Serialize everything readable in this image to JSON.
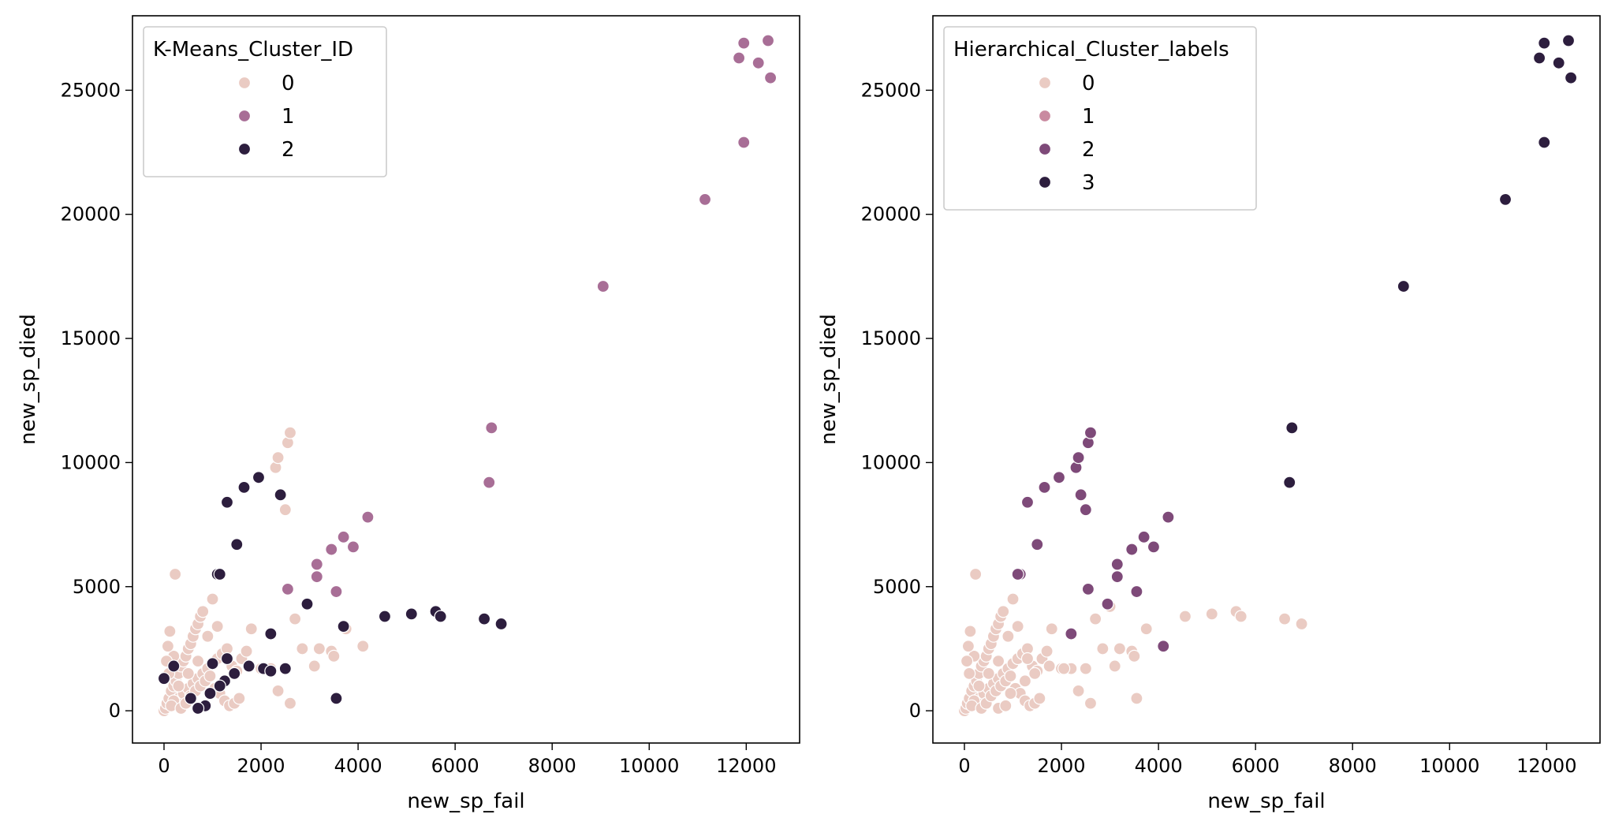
{
  "chart_data": [
    {
      "type": "scatter",
      "title": "",
      "xlabel": "new_sp_fail",
      "ylabel": "new_sp_died",
      "xlim": [
        -650,
        13100
      ],
      "ylim": [
        -1300,
        28000
      ],
      "xticks": [
        0,
        2000,
        4000,
        6000,
        8000,
        10000,
        12000
      ],
      "yticks": [
        0,
        5000,
        10000,
        15000,
        20000,
        25000
      ],
      "legend": {
        "title": "K-Means_Cluster_ID",
        "placement": "top-left",
        "labels": [
          "0",
          "1",
          "2"
        ],
        "colors": [
          "#eacbc3",
          "#a86e96",
          "#2d1e3e"
        ]
      },
      "series": [
        {
          "name": "0",
          "color": "#eacbc3",
          "points": [
            [
              0,
              0
            ],
            [
              30,
              100
            ],
            [
              60,
              300
            ],
            [
              100,
              500
            ],
            [
              150,
              800
            ],
            [
              200,
              1000
            ],
            [
              250,
              1200
            ],
            [
              300,
              1500
            ],
            [
              350,
              1800
            ],
            [
              400,
              2000
            ],
            [
              450,
              2200
            ],
            [
              500,
              2500
            ],
            [
              550,
              2700
            ],
            [
              600,
              3000
            ],
            [
              650,
              3300
            ],
            [
              700,
              3500
            ],
            [
              750,
              3800
            ],
            [
              800,
              4000
            ],
            [
              100,
              1500
            ],
            [
              200,
              2200
            ],
            [
              300,
              500
            ],
            [
              400,
              700
            ],
            [
              500,
              900
            ],
            [
              600,
              1100
            ],
            [
              700,
              1300
            ],
            [
              800,
              1500
            ],
            [
              900,
              1700
            ],
            [
              1000,
              1900
            ],
            [
              1100,
              2100
            ],
            [
              1200,
              2300
            ],
            [
              1300,
              2500
            ],
            [
              1400,
              1800
            ],
            [
              1500,
              1600
            ],
            [
              1600,
              2100
            ],
            [
              1700,
              2400
            ],
            [
              1000,
              4500
            ],
            [
              1100,
              3400
            ],
            [
              900,
              3000
            ],
            [
              700,
              2000
            ],
            [
              500,
              1500
            ],
            [
              300,
              1000
            ],
            [
              200,
              400
            ],
            [
              150,
              200
            ],
            [
              350,
              100
            ],
            [
              450,
              300
            ],
            [
              550,
              600
            ],
            [
              650,
              800
            ],
            [
              750,
              1000
            ],
            [
              850,
              1200
            ],
            [
              950,
              1400
            ],
            [
              1050,
              900
            ],
            [
              1150,
              700
            ],
            [
              1250,
              400
            ],
            [
              1350,
              200
            ],
            [
              1450,
              300
            ],
            [
              1550,
              500
            ],
            [
              1800,
              3300
            ],
            [
              2000,
              1700
            ],
            [
              2200,
              1700
            ],
            [
              2300,
              9800
            ],
            [
              2350,
              10200
            ],
            [
              2550,
              10800
            ],
            [
              2600,
              11200
            ],
            [
              2500,
              8100
            ],
            [
              2350,
              800
            ],
            [
              2600,
              300
            ],
            [
              2700,
              3700
            ],
            [
              2850,
              2500
            ],
            [
              3100,
              1800
            ],
            [
              3200,
              2500
            ],
            [
              3450,
              2400
            ],
            [
              3500,
              2200
            ],
            [
              3750,
              3300
            ],
            [
              4100,
              2600
            ],
            [
              230,
              5500
            ],
            [
              50,
              2000
            ],
            [
              80,
              2600
            ],
            [
              120,
              3200
            ]
          ]
        },
        {
          "name": "1",
          "color": "#a86e96",
          "points": [
            [
              12450,
              27000
            ],
            [
              11950,
              26900
            ],
            [
              11850,
              26300
            ],
            [
              12250,
              26100
            ],
            [
              12500,
              25500
            ],
            [
              11950,
              22900
            ],
            [
              11150,
              20600
            ],
            [
              9050,
              17100
            ],
            [
              6750,
              11400
            ],
            [
              6700,
              9200
            ],
            [
              4200,
              7800
            ],
            [
              3700,
              7000
            ],
            [
              3450,
              6500
            ],
            [
              3900,
              6600
            ],
            [
              3150,
              5900
            ],
            [
              3150,
              5400
            ],
            [
              2550,
              4900
            ],
            [
              3550,
              4800
            ]
          ]
        },
        {
          "name": "2",
          "color": "#2d1e3e",
          "points": [
            [
              1300,
              8400
            ],
            [
              1650,
              9000
            ],
            [
              1950,
              9400
            ],
            [
              2400,
              8700
            ],
            [
              1500,
              6700
            ],
            [
              1100,
              5500
            ],
            [
              1150,
              5500
            ],
            [
              2200,
              3100
            ],
            [
              2950,
              4300
            ],
            [
              3700,
              3400
            ],
            [
              4550,
              3800
            ],
            [
              5100,
              3900
            ],
            [
              5600,
              4000
            ],
            [
              5700,
              3800
            ],
            [
              6600,
              3700
            ],
            [
              6950,
              3500
            ],
            [
              3550,
              500
            ],
            [
              2050,
              1700
            ],
            [
              2200,
              1600
            ],
            [
              2500,
              1700
            ],
            [
              1750,
              1800
            ],
            [
              1450,
              1500
            ],
            [
              1300,
              2100
            ],
            [
              1250,
              1200
            ],
            [
              1150,
              1000
            ],
            [
              950,
              700
            ],
            [
              850,
              200
            ],
            [
              700,
              100
            ],
            [
              1000,
              1900
            ],
            [
              200,
              1800
            ],
            [
              0,
              1300
            ],
            [
              550,
              500
            ]
          ]
        }
      ]
    },
    {
      "type": "scatter",
      "title": "",
      "xlabel": "new_sp_fail",
      "ylabel": "new_sp_died",
      "xlim": [
        -650,
        13100
      ],
      "ylim": [
        -1300,
        28000
      ],
      "xticks": [
        0,
        2000,
        4000,
        6000,
        8000,
        10000,
        12000
      ],
      "yticks": [
        0,
        5000,
        10000,
        15000,
        20000,
        25000
      ],
      "legend": {
        "title": "Hierarchical_Cluster_labels",
        "placement": "top-left",
        "labels": [
          "0",
          "1",
          "2",
          "3"
        ],
        "colors": [
          "#eacbc3",
          "#c98aa0",
          "#7e4a79",
          "#2d1e3e"
        ]
      },
      "series": [
        {
          "name": "0",
          "color": "#eacbc3",
          "points": [
            [
              0,
              0
            ],
            [
              30,
              100
            ],
            [
              60,
              300
            ],
            [
              100,
              500
            ],
            [
              150,
              800
            ],
            [
              200,
              1000
            ],
            [
              250,
              1200
            ],
            [
              300,
              1500
            ],
            [
              350,
              1800
            ],
            [
              400,
              2000
            ],
            [
              450,
              2200
            ],
            [
              500,
              2500
            ],
            [
              550,
              2700
            ],
            [
              600,
              3000
            ],
            [
              650,
              3300
            ],
            [
              700,
              3500
            ],
            [
              750,
              3800
            ],
            [
              800,
              4000
            ],
            [
              100,
              1500
            ],
            [
              200,
              2200
            ],
            [
              300,
              500
            ],
            [
              400,
              700
            ],
            [
              500,
              900
            ],
            [
              600,
              1100
            ],
            [
              700,
              1300
            ],
            [
              800,
              1500
            ],
            [
              900,
              1700
            ],
            [
              1000,
              1900
            ],
            [
              1100,
              2100
            ],
            [
              1200,
              2300
            ],
            [
              1300,
              2500
            ],
            [
              1400,
              1800
            ],
            [
              1500,
              1600
            ],
            [
              1600,
              2100
            ],
            [
              1700,
              2400
            ],
            [
              1000,
              4500
            ],
            [
              1100,
              3400
            ],
            [
              900,
              3000
            ],
            [
              700,
              2000
            ],
            [
              500,
              1500
            ],
            [
              300,
              1000
            ],
            [
              200,
              400
            ],
            [
              150,
              200
            ],
            [
              350,
              100
            ],
            [
              450,
              300
            ],
            [
              550,
              600
            ],
            [
              650,
              800
            ],
            [
              750,
              1000
            ],
            [
              850,
              1200
            ],
            [
              950,
              1400
            ],
            [
              1050,
              900
            ],
            [
              1150,
              700
            ],
            [
              1250,
              400
            ],
            [
              1350,
              200
            ],
            [
              1450,
              300
            ],
            [
              1550,
              500
            ],
            [
              1800,
              3300
            ],
            [
              2000,
              1700
            ],
            [
              2200,
              1700
            ],
            [
              2350,
              800
            ],
            [
              2600,
              300
            ],
            [
              2700,
              3700
            ],
            [
              2850,
              2500
            ],
            [
              3100,
              1800
            ],
            [
              3200,
              2500
            ],
            [
              3450,
              2400
            ],
            [
              3500,
              2200
            ],
            [
              3750,
              3300
            ],
            [
              230,
              5500
            ],
            [
              50,
              2000
            ],
            [
              80,
              2600
            ],
            [
              120,
              3200
            ],
            [
              3000,
              4200
            ],
            [
              3550,
              500
            ],
            [
              4550,
              3800
            ],
            [
              5100,
              3900
            ],
            [
              5600,
              4000
            ],
            [
              5700,
              3800
            ],
            [
              6600,
              3700
            ],
            [
              6950,
              3500
            ],
            [
              1750,
              1800
            ],
            [
              1450,
              1500
            ],
            [
              1300,
              2100
            ],
            [
              1250,
              1200
            ],
            [
              2050,
              1700
            ],
            [
              2500,
              1700
            ],
            [
              700,
              100
            ],
            [
              850,
              200
            ],
            [
              950,
              700
            ]
          ]
        },
        {
          "name": "1",
          "color": "#c98aa0",
          "points": []
        },
        {
          "name": "2",
          "color": "#7e4a79",
          "points": [
            [
              2300,
              9800
            ],
            [
              2350,
              10200
            ],
            [
              2550,
              10800
            ],
            [
              2600,
              11200
            ],
            [
              2500,
              8100
            ],
            [
              2400,
              8700
            ],
            [
              1950,
              9400
            ],
            [
              1650,
              9000
            ],
            [
              1300,
              8400
            ],
            [
              1500,
              6700
            ],
            [
              1150,
              5500
            ],
            [
              1100,
              5500
            ],
            [
              2200,
              3100
            ],
            [
              2950,
              4300
            ],
            [
              4100,
              2600
            ],
            [
              4200,
              7800
            ],
            [
              3700,
              7000
            ],
            [
              3450,
              6500
            ],
            [
              3900,
              6600
            ],
            [
              3150,
              5900
            ],
            [
              3150,
              5400
            ],
            [
              2550,
              4900
            ],
            [
              3550,
              4800
            ]
          ]
        },
        {
          "name": "3",
          "color": "#2d1e3e",
          "points": [
            [
              12450,
              27000
            ],
            [
              11950,
              26900
            ],
            [
              11850,
              26300
            ],
            [
              12250,
              26100
            ],
            [
              12500,
              25500
            ],
            [
              11950,
              22900
            ],
            [
              11150,
              20600
            ],
            [
              9050,
              17100
            ],
            [
              6750,
              11400
            ],
            [
              6700,
              9200
            ]
          ]
        }
      ]
    }
  ]
}
